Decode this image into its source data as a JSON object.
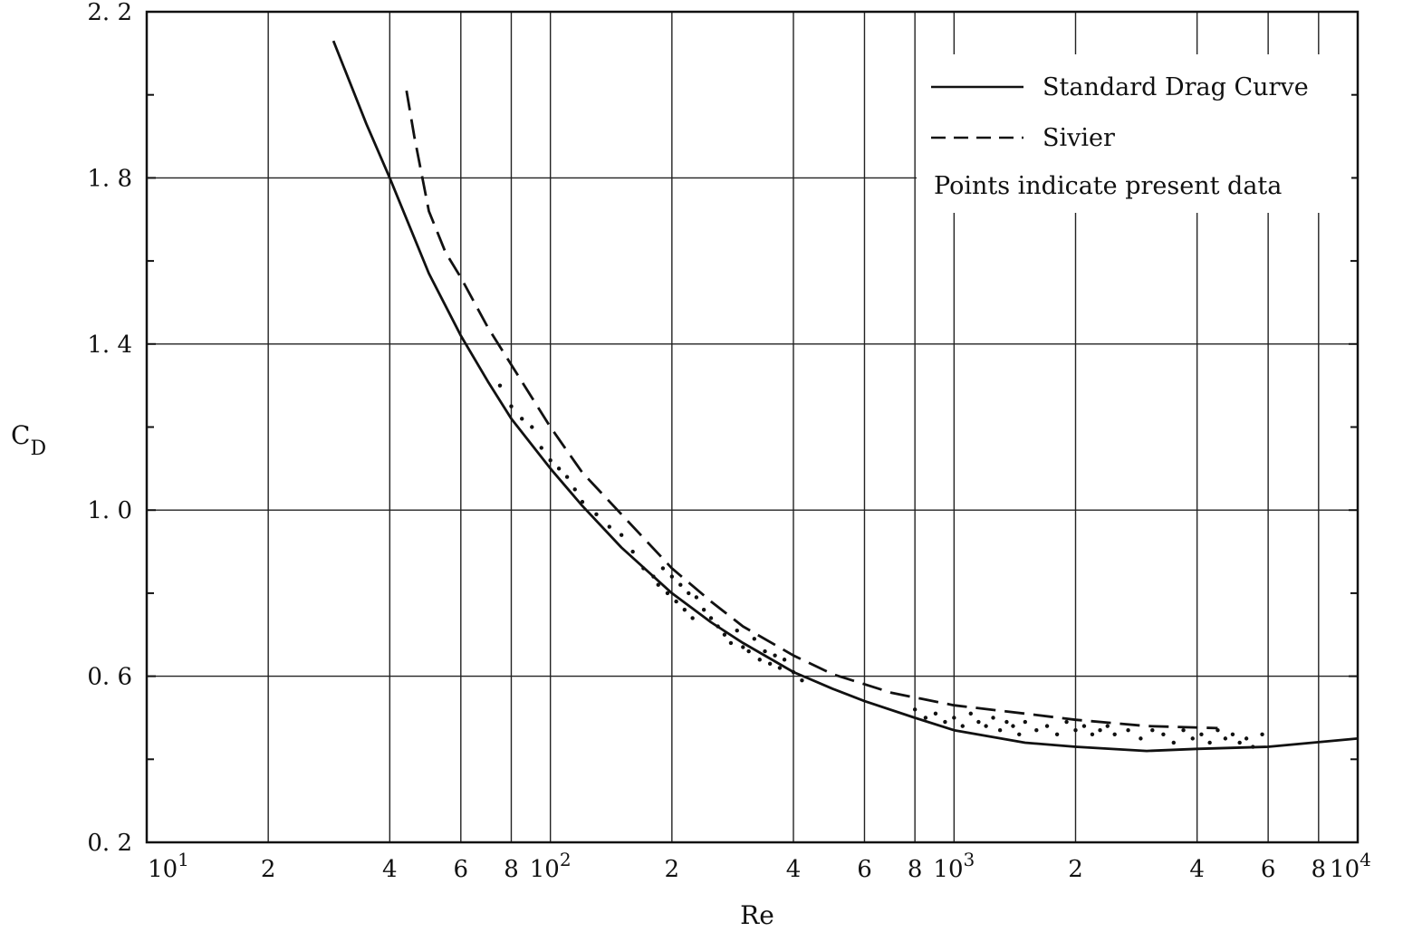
{
  "chart_data": {
    "type": "line",
    "title": "",
    "xlabel": "Re",
    "ylabel": "C",
    "ylabel_subscript": "D",
    "xscale": "log",
    "xlim": [
      10,
      10000
    ],
    "ylim": [
      0.2,
      2.2
    ],
    "grid": true,
    "legend_position": "top-right",
    "x_decade_ticks": [
      {
        "value": 10,
        "base": "10",
        "exp": "1"
      },
      {
        "value": 100,
        "base": "10",
        "exp": "2"
      },
      {
        "value": 1000,
        "base": "10",
        "exp": "3"
      },
      {
        "value": 10000,
        "base": "10",
        "exp": "4"
      }
    ],
    "x_minor_ticks": [
      {
        "value": 20,
        "label": "2"
      },
      {
        "value": 40,
        "label": "4"
      },
      {
        "value": 60,
        "label": "6"
      },
      {
        "value": 80,
        "label": "8"
      },
      {
        "value": 200,
        "label": "2"
      },
      {
        "value": 400,
        "label": "4"
      },
      {
        "value": 600,
        "label": "6"
      },
      {
        "value": 800,
        "label": "8"
      },
      {
        "value": 2000,
        "label": "2"
      },
      {
        "value": 4000,
        "label": "4"
      },
      {
        "value": 6000,
        "label": "6"
      },
      {
        "value": 8000,
        "label": "8"
      }
    ],
    "y_ticks": [
      {
        "value": 0.2,
        "label": "0. 2"
      },
      {
        "value": 0.6,
        "label": "0. 6"
      },
      {
        "value": 1.0,
        "label": "1. 0"
      },
      {
        "value": 1.4,
        "label": "1. 4"
      },
      {
        "value": 1.8,
        "label": "1. 8"
      },
      {
        "value": 2.2,
        "label": "2. 2"
      }
    ],
    "y_minor_ticks": [
      0.4,
      0.8,
      1.2,
      1.6,
      2.0
    ],
    "series": [
      {
        "name": "Standard Drag Curve",
        "style": "solid",
        "x": [
          29,
          35,
          40,
          50,
          60,
          70,
          80,
          100,
          120,
          150,
          200,
          250,
          300,
          400,
          500,
          600,
          800,
          1000,
          1500,
          2000,
          3000,
          4000,
          6000,
          10000
        ],
        "y": [
          2.13,
          1.93,
          1.8,
          1.57,
          1.42,
          1.31,
          1.22,
          1.1,
          1.01,
          0.91,
          0.8,
          0.73,
          0.68,
          0.61,
          0.57,
          0.54,
          0.5,
          0.47,
          0.44,
          0.43,
          0.42,
          0.425,
          0.43,
          0.45
        ]
      },
      {
        "name": "Sivier",
        "style": "dashed",
        "x": [
          44,
          46,
          50,
          55,
          60,
          70,
          80,
          100,
          120,
          150,
          200,
          250,
          300,
          400,
          500,
          700,
          1000,
          1500,
          2000,
          3000,
          4500
        ],
        "y": [
          2.01,
          1.9,
          1.72,
          1.62,
          1.56,
          1.44,
          1.35,
          1.2,
          1.09,
          0.99,
          0.86,
          0.78,
          0.72,
          0.65,
          0.605,
          0.56,
          0.53,
          0.51,
          0.495,
          0.48,
          0.475
        ]
      },
      {
        "name": "Points indicate present data",
        "style": "points",
        "x": [
          75,
          80,
          85,
          90,
          95,
          100,
          105,
          110,
          115,
          120,
          130,
          140,
          150,
          160,
          170,
          180,
          185,
          190,
          195,
          200,
          205,
          210,
          215,
          220,
          225,
          230,
          240,
          250,
          260,
          270,
          280,
          290,
          300,
          310,
          320,
          330,
          340,
          350,
          360,
          370,
          380,
          400,
          420,
          800,
          850,
          900,
          950,
          1000,
          1050,
          1100,
          1150,
          1200,
          1250,
          1300,
          1350,
          1400,
          1450,
          1500,
          1600,
          1700,
          1800,
          1900,
          2000,
          2100,
          2200,
          2300,
          2400,
          2500,
          2700,
          2900,
          3100,
          3300,
          3500,
          3700,
          3900,
          4100,
          4300,
          4500,
          4700,
          4900,
          5100,
          5300,
          5500,
          5800
        ],
        "y": [
          1.3,
          1.25,
          1.22,
          1.2,
          1.15,
          1.12,
          1.1,
          1.08,
          1.05,
          1.02,
          0.99,
          0.96,
          0.94,
          0.9,
          0.86,
          0.84,
          0.82,
          0.86,
          0.8,
          0.84,
          0.78,
          0.82,
          0.76,
          0.8,
          0.74,
          0.79,
          0.76,
          0.74,
          0.72,
          0.7,
          0.68,
          0.71,
          0.67,
          0.66,
          0.69,
          0.64,
          0.66,
          0.63,
          0.65,
          0.62,
          0.64,
          0.61,
          0.59,
          0.52,
          0.5,
          0.51,
          0.49,
          0.5,
          0.48,
          0.51,
          0.49,
          0.48,
          0.5,
          0.47,
          0.49,
          0.48,
          0.46,
          0.49,
          0.47,
          0.48,
          0.46,
          0.49,
          0.47,
          0.48,
          0.46,
          0.47,
          0.48,
          0.46,
          0.47,
          0.45,
          0.47,
          0.46,
          0.44,
          0.47,
          0.45,
          0.46,
          0.44,
          0.47,
          0.45,
          0.46,
          0.44,
          0.45,
          0.43,
          0.46
        ]
      }
    ]
  }
}
